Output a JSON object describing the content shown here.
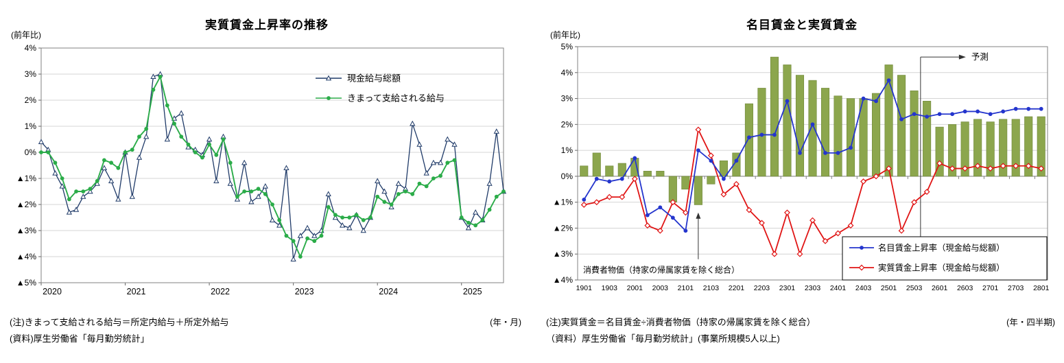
{
  "panels": {
    "left": {
      "title": "実質賃金上昇率の推移",
      "y_unit": "(前年比)",
      "x_unit": "(年・月)",
      "note1": "(注)きまって支給される給与＝所定内給与＋所定外給与",
      "note2": "(資料)厚生労働省「毎月勤労統計」"
    },
    "right": {
      "title": "名目賃金と実質賃金",
      "y_unit": "(前年比)",
      "x_unit": "(年・四半期)",
      "note1": "(注)実質賃金＝名目賃金÷消費者物価（持家の帰属家賃を除く総合）",
      "note2": "（資料）厚生労働省「毎月勤労統計」(事業所規模5人以上)"
    }
  },
  "chart_data": [
    {
      "id": "left",
      "type": "line",
      "title": "実質賃金上昇率の推移",
      "ylabel": "前年比",
      "xlabel": "年・月",
      "ylim": [
        -5,
        4
      ],
      "y_tick_step": 1,
      "grid": true,
      "legend_position": "top-right-inside",
      "x_ticks": [
        {
          "index": 0,
          "label": "2020"
        },
        {
          "index": 12,
          "label": "2021"
        },
        {
          "index": 24,
          "label": "2022"
        },
        {
          "index": 36,
          "label": "2023"
        },
        {
          "index": 48,
          "label": "2024"
        },
        {
          "index": 60,
          "label": "2025"
        }
      ],
      "series": [
        {
          "name": "現金給与総額",
          "marker": "open-triangle",
          "color": "#1f3a68",
          "values": [
            0.4,
            0.1,
            -0.8,
            -1.3,
            -2.3,
            -2.2,
            -1.7,
            -1.5,
            -1.2,
            -0.6,
            -1.1,
            -1.8,
            0.0,
            -1.7,
            -0.2,
            0.6,
            2.9,
            3.0,
            0.5,
            1.3,
            1.5,
            0.2,
            0.1,
            -0.1,
            0.5,
            -1.1,
            0.6,
            -1.2,
            -1.8,
            -0.4,
            -1.9,
            -1.7,
            -1.3,
            -2.6,
            -2.8,
            -0.6,
            -4.1,
            -3.2,
            -2.9,
            -3.2,
            -3.0,
            -1.6,
            -2.5,
            -2.8,
            -2.9,
            -2.4,
            -3.0,
            -2.5,
            -1.1,
            -1.5,
            -2.1,
            -1.2,
            -1.4,
            1.1,
            0.3,
            -0.8,
            -0.4,
            -0.4,
            0.5,
            0.3,
            -2.5,
            -2.9,
            -2.3,
            -2.6,
            -1.2,
            0.8,
            -1.5
          ]
        },
        {
          "name": "きまって支給される給与",
          "marker": "filled-circle",
          "color": "#2bac49",
          "values": [
            0.0,
            0.0,
            -0.4,
            -1.0,
            -1.8,
            -1.5,
            -1.5,
            -1.4,
            -1.1,
            -0.3,
            -0.4,
            -0.6,
            0.0,
            0.1,
            0.6,
            0.9,
            2.4,
            2.9,
            1.8,
            1.1,
            0.6,
            0.3,
            0.0,
            -0.2,
            0.3,
            -0.1,
            0.5,
            -0.4,
            -1.7,
            -1.5,
            -1.5,
            -1.4,
            -1.6,
            -2.0,
            -2.6,
            -3.2,
            -3.4,
            -4.0,
            -3.3,
            -3.4,
            -3.2,
            -2.1,
            -2.4,
            -2.5,
            -2.5,
            -2.4,
            -2.6,
            -2.5,
            -1.7,
            -1.9,
            -2.0,
            -1.6,
            -1.5,
            -1.6,
            -1.2,
            -1.3,
            -1.0,
            -0.9,
            -0.4,
            -0.3,
            -2.5,
            -2.7,
            -2.8,
            -2.6,
            -2.2,
            -1.7,
            -1.5
          ]
        }
      ]
    },
    {
      "id": "right",
      "type": "combo-bar-line",
      "title": "名目賃金と実質賃金",
      "ylabel": "前年比",
      "xlabel": "年・四半期",
      "ylim": [
        -4,
        5
      ],
      "y_tick_step": 1,
      "grid": true,
      "legend_position": "bottom-right-inside",
      "x_label_every": 2,
      "categories": [
        "1901",
        "1902",
        "1903",
        "1904",
        "2001",
        "2002",
        "2003",
        "2004",
        "2101",
        "2102",
        "2103",
        "2104",
        "2201",
        "2202",
        "2203",
        "2204",
        "2301",
        "2302",
        "2303",
        "2304",
        "2401",
        "2402",
        "2403",
        "2404",
        "2501",
        "2502",
        "2503",
        "2504",
        "2601",
        "2602",
        "2603",
        "2604",
        "2701",
        "2702",
        "2703",
        "2704",
        "2801"
      ],
      "bar_series": {
        "name": "消費者物価（持家の帰属家賃を除く総合）",
        "color": "#8ca64d",
        "values": [
          0.4,
          0.9,
          0.4,
          0.5,
          0.7,
          0.2,
          0.2,
          -1.0,
          -0.5,
          -1.1,
          -0.3,
          0.6,
          0.9,
          2.8,
          3.4,
          4.6,
          4.3,
          3.9,
          3.7,
          3.4,
          3.1,
          3.0,
          3.0,
          3.2,
          4.3,
          3.9,
          3.3,
          2.9,
          1.9,
          2.0,
          2.1,
          2.2,
          2.1,
          2.2,
          2.2,
          2.3,
          2.3
        ]
      },
      "line_series": [
        {
          "name": "名目賃金上昇率（現金給与総額）",
          "marker": "filled-circle",
          "color": "#2435cd",
          "values": [
            -0.9,
            -0.1,
            -0.2,
            -0.1,
            0.7,
            -1.5,
            -1.2,
            -1.6,
            -2.1,
            1.0,
            0.6,
            -0.1,
            0.6,
            1.5,
            1.6,
            1.6,
            2.9,
            0.9,
            2.0,
            0.9,
            0.9,
            1.1,
            3.0,
            2.9,
            3.7,
            2.2,
            2.4,
            2.3,
            2.4,
            2.4,
            2.5,
            2.5,
            2.4,
            2.5,
            2.6,
            2.6,
            2.6
          ]
        },
        {
          "name": "実質賃金上昇率（現金給与総額）",
          "marker": "open-diamond",
          "color": "#e01414",
          "values": [
            -1.1,
            -1.0,
            -0.8,
            -0.8,
            -0.1,
            -1.9,
            -2.1,
            -1.0,
            -1.4,
            1.8,
            0.8,
            -0.7,
            -0.3,
            -1.3,
            -1.8,
            -3.0,
            -1.4,
            -3.0,
            -1.7,
            -2.5,
            -2.2,
            -1.9,
            -0.2,
            0.0,
            0.3,
            -2.1,
            -1.0,
            -0.6,
            0.5,
            0.3,
            0.3,
            0.4,
            0.3,
            0.4,
            0.4,
            0.4,
            0.3
          ]
        }
      ],
      "forecast": {
        "label": "予測",
        "starts_after_category": "2503"
      },
      "annotation": {
        "text": "消費者物価（持家の帰属家賃を除く総合）",
        "target_category": "2102"
      }
    }
  ]
}
